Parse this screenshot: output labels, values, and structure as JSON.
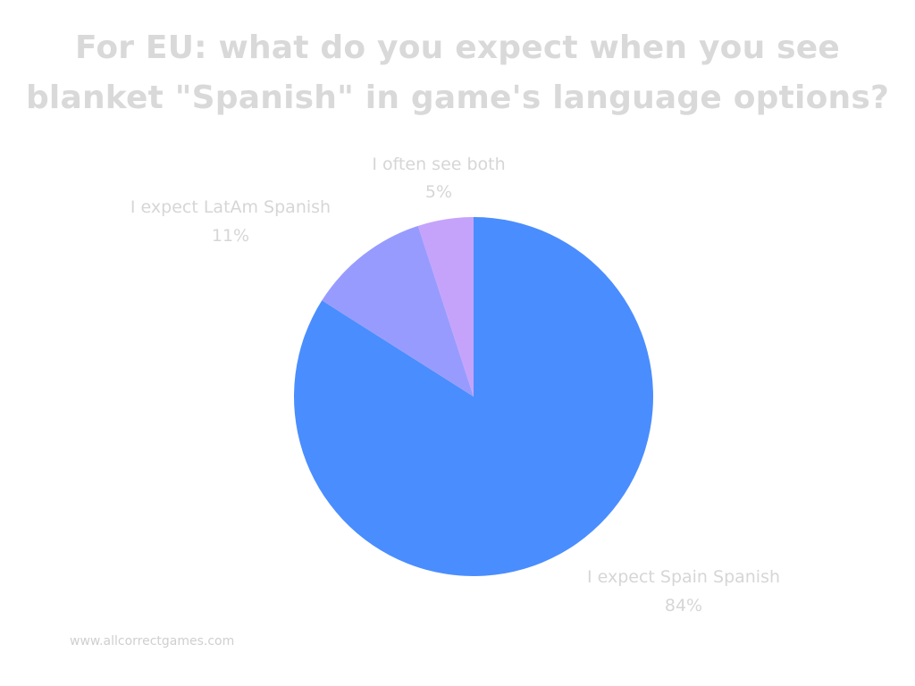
{
  "chart_data": {
    "type": "pie",
    "title_lines": [
      "For EU: what do you expect when you see",
      "blanket \"Spanish\" in game's language options?"
    ],
    "categories": [
      "I expect Spain Spanish",
      "I expect LatAm Spanish",
      "I often see both"
    ],
    "values": [
      84,
      11,
      5
    ],
    "value_labels": [
      "84%",
      "11%",
      "5%"
    ],
    "colors": [
      "#4a8dfe",
      "#989bfe",
      "#c5a3fb"
    ],
    "start": "12 o'clock",
    "direction": "clockwise",
    "legend": "none"
  },
  "footer": {
    "source": "www.allcorrectgames.com"
  }
}
